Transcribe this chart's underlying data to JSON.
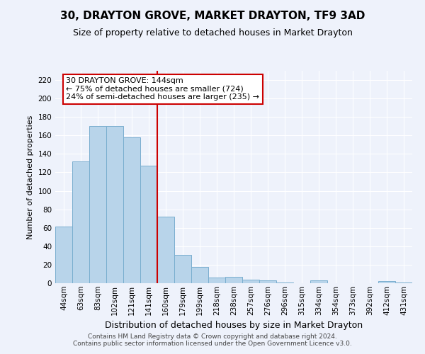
{
  "title": "30, DRAYTON GROVE, MARKET DRAYTON, TF9 3AD",
  "subtitle": "Size of property relative to detached houses in Market Drayton",
  "xlabel": "Distribution of detached houses by size in Market Drayton",
  "ylabel": "Number of detached properties",
  "bar_labels": [
    "44sqm",
    "63sqm",
    "83sqm",
    "102sqm",
    "121sqm",
    "141sqm",
    "160sqm",
    "179sqm",
    "199sqm",
    "218sqm",
    "238sqm",
    "257sqm",
    "276sqm",
    "296sqm",
    "315sqm",
    "334sqm",
    "354sqm",
    "373sqm",
    "392sqm",
    "412sqm",
    "431sqm"
  ],
  "bar_values": [
    61,
    132,
    170,
    170,
    158,
    127,
    72,
    31,
    18,
    6,
    7,
    4,
    3,
    1,
    0,
    3,
    0,
    0,
    0,
    2,
    1
  ],
  "bar_color": "#b8d4ea",
  "bar_edge_color": "#7aaecf",
  "vline_color": "#cc0000",
  "ylim": [
    0,
    230
  ],
  "yticks": [
    0,
    20,
    40,
    60,
    80,
    100,
    120,
    140,
    160,
    180,
    200,
    220
  ],
  "annotation_title": "30 DRAYTON GROVE: 144sqm",
  "annotation_line1": "← 75% of detached houses are smaller (724)",
  "annotation_line2": "24% of semi-detached houses are larger (235) →",
  "annotation_box_facecolor": "#ffffff",
  "annotation_box_edgecolor": "#cc0000",
  "footer_line1": "Contains HM Land Registry data © Crown copyright and database right 2024.",
  "footer_line2": "Contains public sector information licensed under the Open Government Licence v3.0.",
  "background_color": "#eef2fb",
  "grid_color": "#ffffff",
  "title_fontsize": 11,
  "subtitle_fontsize": 9,
  "xlabel_fontsize": 9,
  "ylabel_fontsize": 8,
  "tick_fontsize": 7.5,
  "footer_fontsize": 6.5
}
